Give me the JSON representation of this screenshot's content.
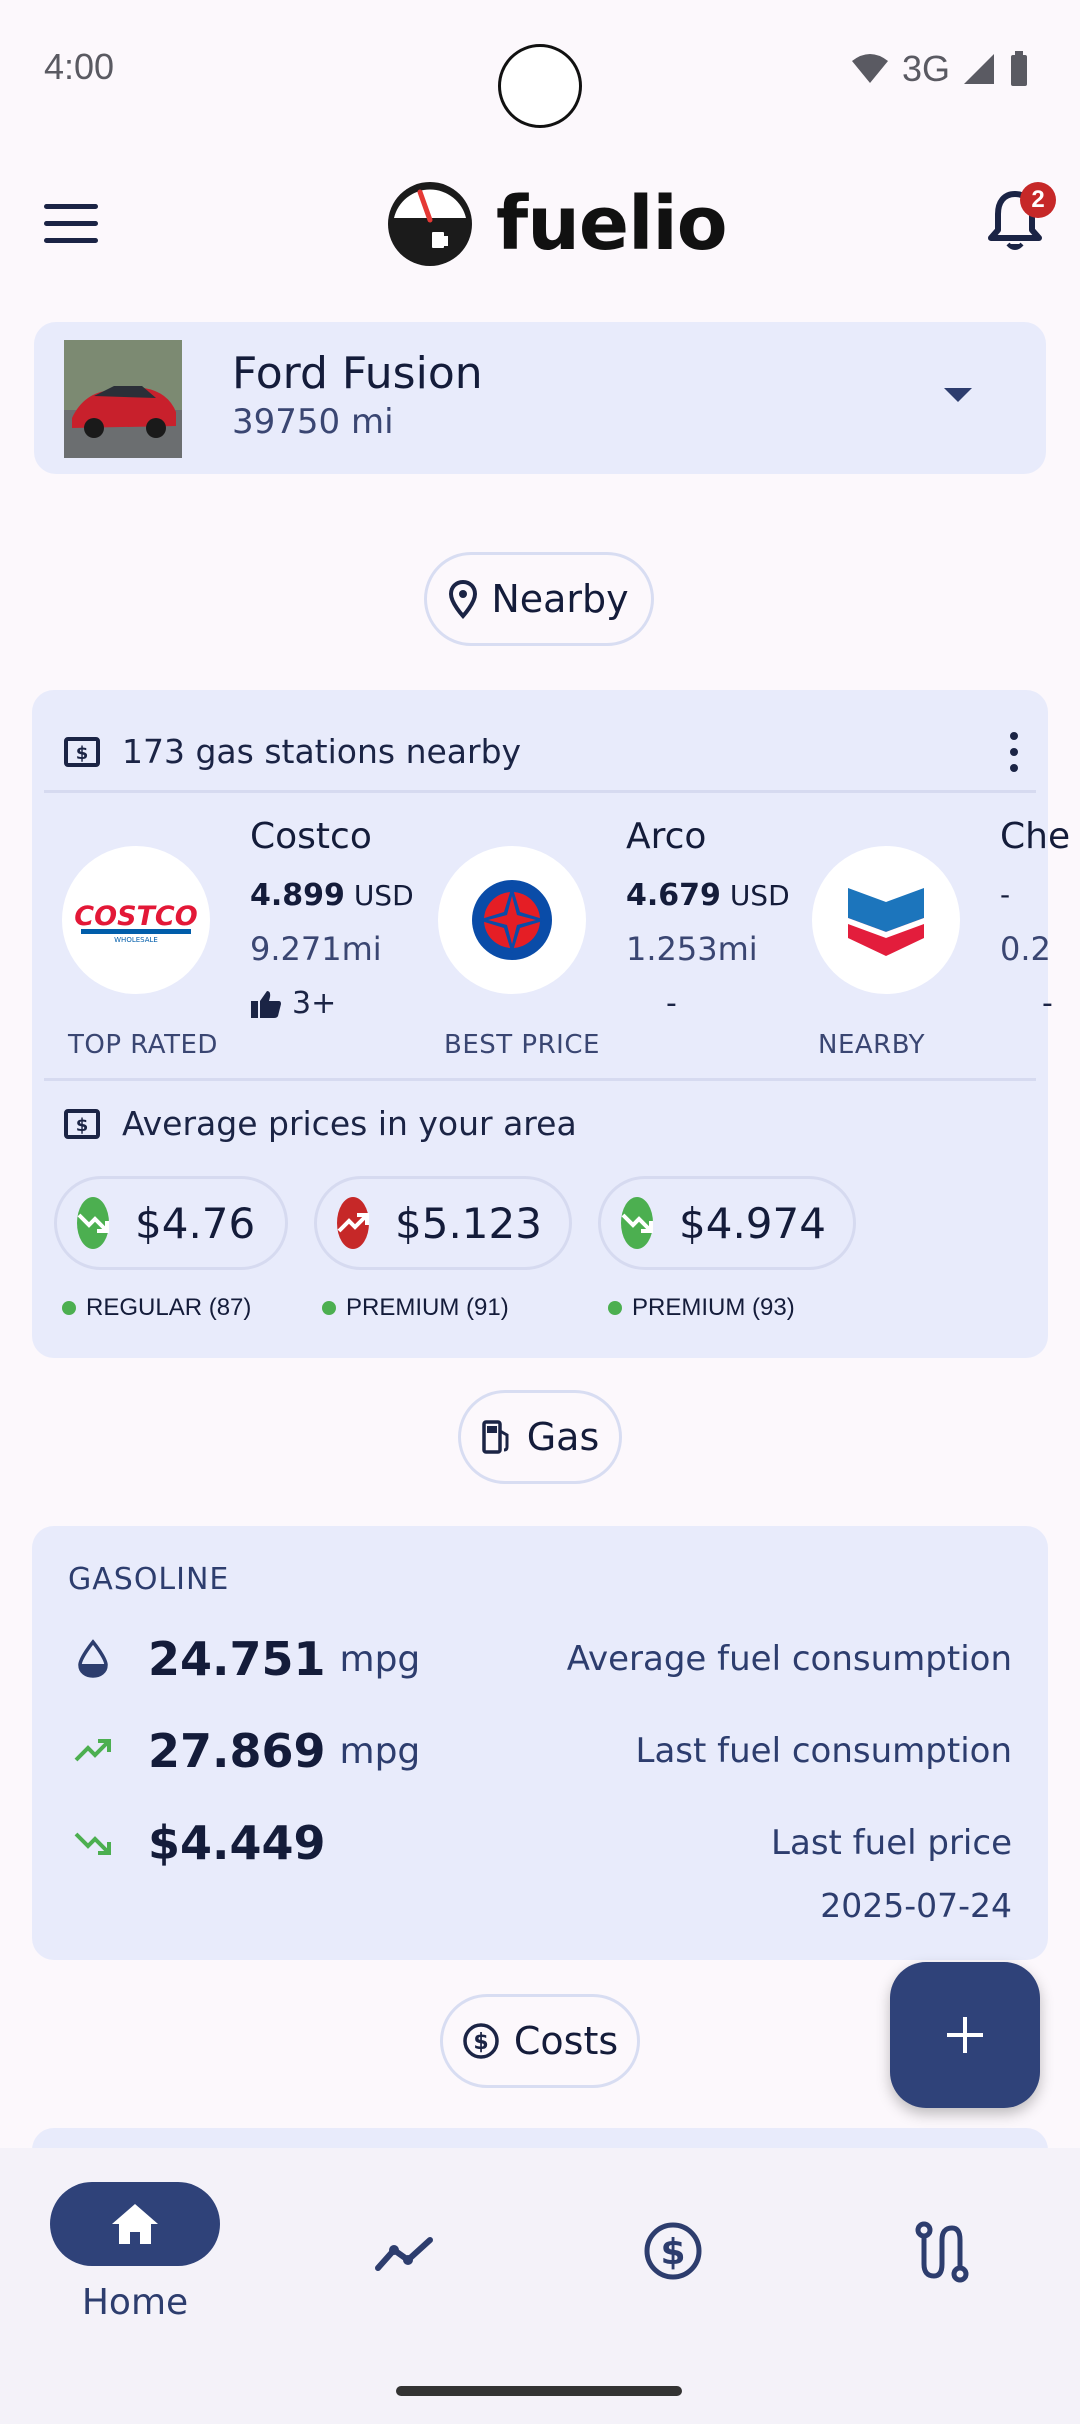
{
  "status_bar": {
    "time": "4:00",
    "network": "3G"
  },
  "app_bar": {
    "logo_text": "fuelio",
    "notification_count": "2"
  },
  "vehicle": {
    "name": "Ford Fusion",
    "odometer": "39750 mi"
  },
  "chips": {
    "nearby": "Nearby",
    "gas": "Gas",
    "costs": "Costs"
  },
  "stations": {
    "header": "173 gas stations nearby",
    "items": [
      {
        "name": "Costco",
        "price": "4.899",
        "currency": "USD",
        "distance": "9.271mi",
        "votes": "3+",
        "tag": "TOP RATED"
      },
      {
        "name": "Arco",
        "price": "4.679",
        "currency": "USD",
        "distance": "1.253mi",
        "votes": "-",
        "tag": "BEST PRICE"
      },
      {
        "name": "Che",
        "price": "-",
        "currency": "",
        "distance": "0.2",
        "votes": "-",
        "tag": "NEARBY"
      }
    ],
    "logo_texts": {
      "costco": "COSTCO",
      "costco_sub": "WHOLESALE"
    }
  },
  "average": {
    "header": "Average prices in your area",
    "items": [
      {
        "price": "$4.76",
        "label": "REGULAR (87)",
        "trend": "down"
      },
      {
        "price": "$5.123",
        "label": "PREMIUM (91)",
        "trend": "up"
      },
      {
        "price": "$4.974",
        "label": "PREMIUM (93)",
        "trend": "down"
      }
    ]
  },
  "gasoline": {
    "title": "GASOLINE",
    "rows": [
      {
        "value": "24.751",
        "unit": "mpg",
        "desc": "Average fuel consumption",
        "icon": "drop-icon"
      },
      {
        "value": "27.869",
        "unit": "mpg",
        "desc": "Last fuel consumption",
        "icon": "trending-up-icon"
      },
      {
        "value": "$4.449",
        "unit": "",
        "desc": "Last fuel price",
        "icon": "trending-down-icon"
      }
    ],
    "date": "2025-07-24"
  },
  "bottom_nav": {
    "home": "Home"
  },
  "colors": {
    "primary": "#2f4279",
    "card": "#e8ebfb",
    "up": "#c62828",
    "down": "#4caf50"
  }
}
